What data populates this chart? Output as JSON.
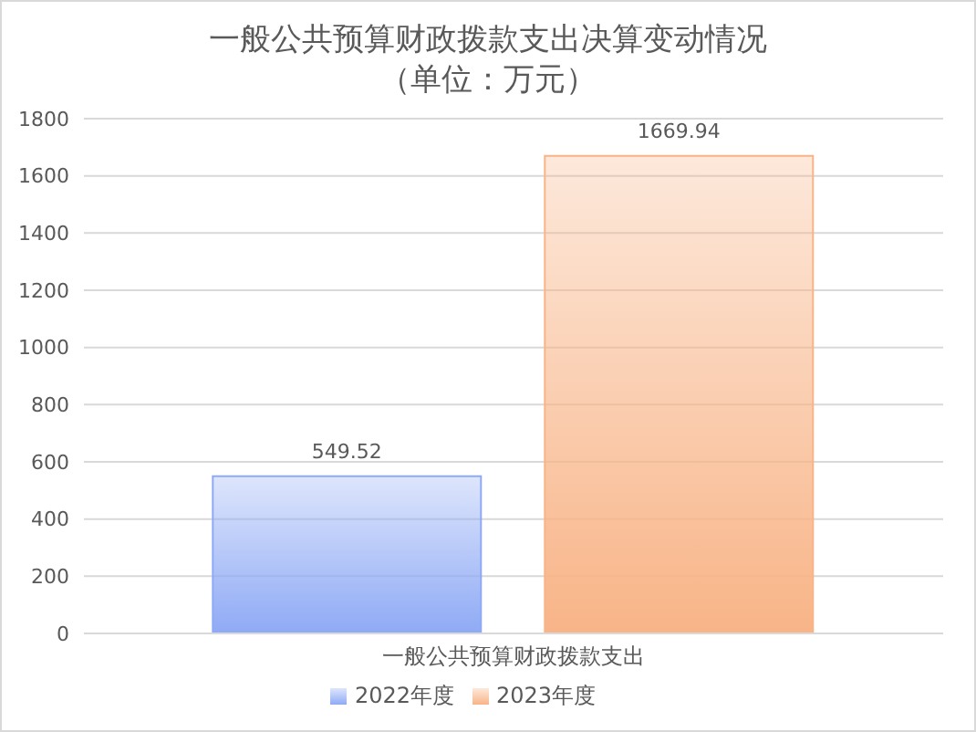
{
  "chart_data": {
    "type": "bar",
    "title": "一般公共预算财政拨款支出决算变动情况",
    "subtitle": "（单位：万元）",
    "categories": [
      "一般公共预算财政拨款支出"
    ],
    "series": [
      {
        "name": "2022年度",
        "color": "#8faaf5",
        "values": [
          549.52
        ]
      },
      {
        "name": "2023年度",
        "color": "#f8b487",
        "values": [
          1669.94
        ]
      }
    ],
    "ylim": [
      0,
      1800
    ],
    "yticks": [
      0,
      200,
      400,
      600,
      800,
      1000,
      1200,
      1400,
      1600,
      1800
    ],
    "grid": "y",
    "legend": "bottom",
    "data_labels": true
  }
}
